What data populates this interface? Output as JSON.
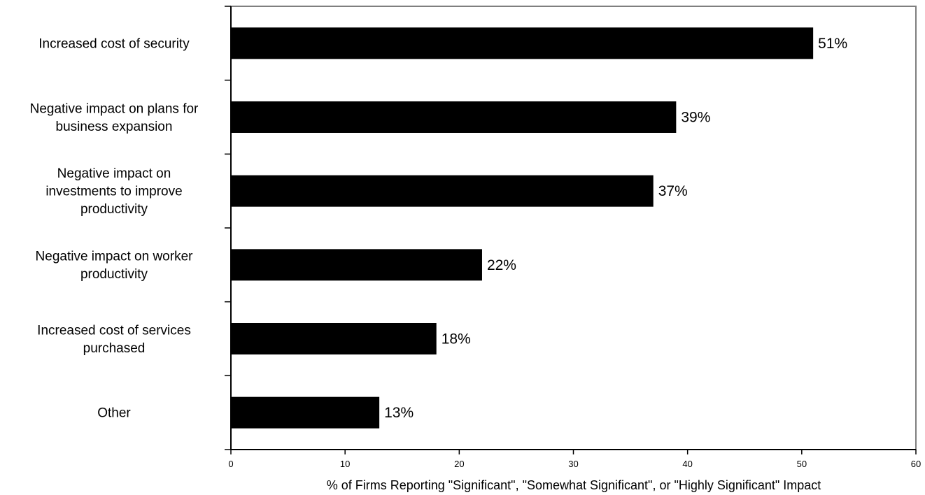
{
  "chart_data": {
    "type": "bar",
    "orientation": "horizontal",
    "categories": [
      "Increased cost of security",
      "Negative impact on plans for business expansion",
      "Negative impact on investments to improve productivity",
      "Negative impact on worker productivity",
      "Increased cost of services purchased",
      "Other"
    ],
    "category_label_lines": [
      [
        "Increased cost of security"
      ],
      [
        "Negative impact on plans for",
        "business expansion"
      ],
      [
        "Negative impact on",
        "investments to improve",
        "productivity"
      ],
      [
        "Negative impact on worker",
        "productivity"
      ],
      [
        "Increased cost of services",
        "purchased"
      ],
      [
        "Other"
      ]
    ],
    "values": [
      51,
      39,
      37,
      22,
      18,
      13
    ],
    "value_labels": [
      "51%",
      "39%",
      "37%",
      "22%",
      "18%",
      "13%"
    ],
    "xlabel": "% of Firms Reporting \"Significant\", \"Somewhat Significant\", or \"Highly Significant\" Impact",
    "ylabel": "",
    "title": "",
    "xlim": [
      0,
      60
    ],
    "xticks": [
      0,
      10,
      20,
      30,
      40,
      50,
      60
    ],
    "grid": false,
    "legend": "none",
    "colors": {
      "bar": "#000000",
      "frame": "#7f7f7f",
      "axis": "#000000",
      "background": "#ffffff"
    }
  }
}
